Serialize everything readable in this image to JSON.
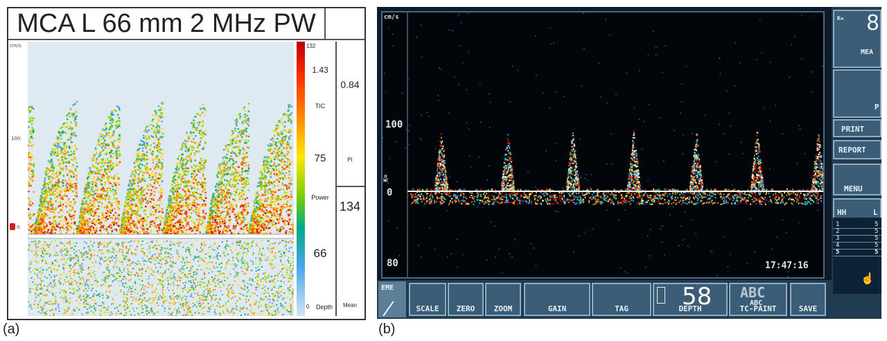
{
  "panel_a": {
    "caption": "(a)",
    "title": "MCA L 66 mm 2 MHz PW",
    "left_scale": {
      "top": "cm/s",
      "mid": "100",
      "marker": "0"
    },
    "colorbar": {
      "top_value": "132",
      "tic_value": "1.43",
      "tic_label": "TIC",
      "power_value": "75",
      "power_label": "Power",
      "depth_value": "66",
      "depth_label": "Depth",
      "bottom_value": "0"
    },
    "right_column": {
      "pi_value": "0.84",
      "pi_label": "PI",
      "mean_value": "134",
      "mean_label": "Mean"
    }
  },
  "panel_b": {
    "caption": "(b)",
    "axis": {
      "unit": "cm/s",
      "tick_100": "100",
      "tick_0": "0",
      "tick_80": "80",
      "side_marker": "K="
    },
    "time": "17:47:16",
    "toolbar": {
      "eme": "EME",
      "scale": "SCALE",
      "zero": "ZERO",
      "zoom": "ZOOM",
      "gain": "GAIN",
      "tag": "TAG",
      "depth_value": "58",
      "depth_label": "DEPTH",
      "abc_big": "ABC",
      "abc_small": "ABC",
      "tcpaint": "TC-PAINT",
      "save": "SAVE"
    },
    "sidebar": {
      "top_value": "8",
      "top_label": "MEA",
      "p_label": "P",
      "print": "PRINT",
      "report": "REPORT",
      "menu": "MENU",
      "table_header_left": "HH",
      "table_header_right": "L",
      "rows": [
        "1",
        "2",
        "3",
        "4",
        "5"
      ],
      "row_value": "5"
    }
  }
}
